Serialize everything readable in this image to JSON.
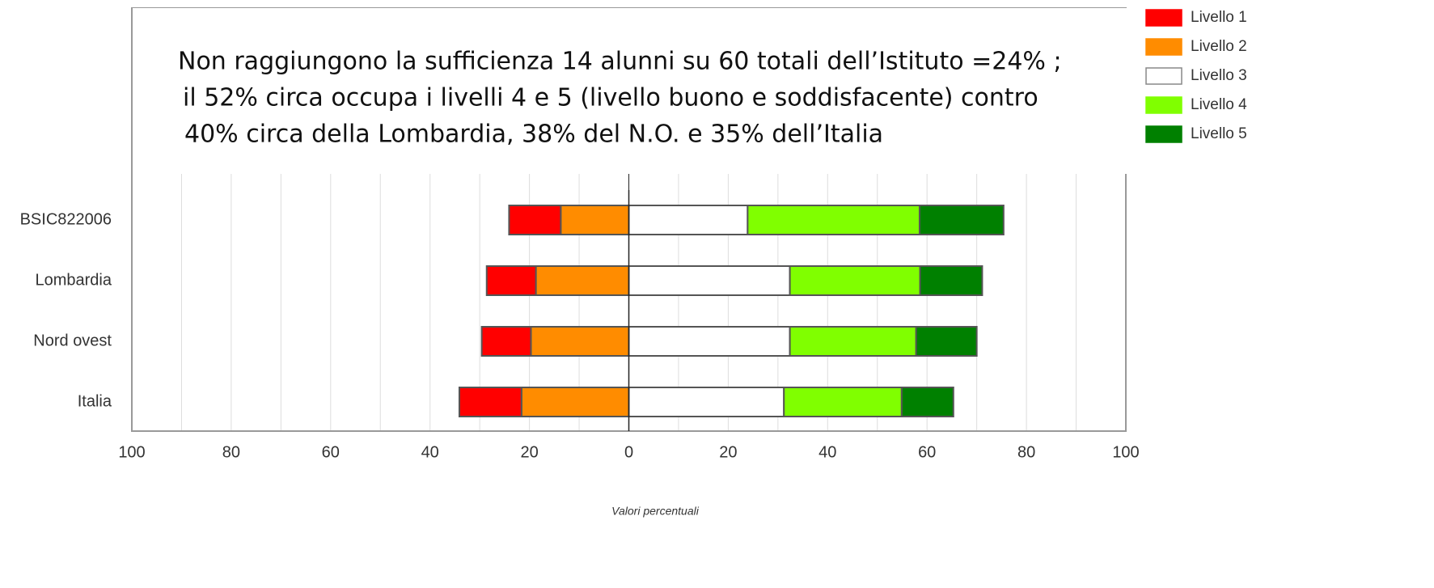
{
  "chart_data": {
    "type": "diverging_bar",
    "annotation": [
      "Non raggiungono la sufficienza 14 alunni su 60 totali dell’Istituto =24% ;",
      "il  52% circa occupa i livelli 4 e 5 (livello buono e soddisfacente)  contro",
      "40% circa della Lombardia, 38% del N.O. e 35% dell’Italia"
    ],
    "xlabel": "Valori percentuali",
    "categories": [
      "BSIC822006",
      "Lombardia",
      "Nord ovest",
      "Italia"
    ],
    "series": [
      {
        "name": "Livello 1",
        "color": "#ff0000",
        "values": [
          -10.4,
          -9.9,
          -9.9,
          -12.5
        ]
      },
      {
        "name": "Livello 2",
        "color": "#ff8c00",
        "values": [
          -13.7,
          -18.7,
          -19.7,
          -21.6
        ]
      },
      {
        "name": "Livello 3",
        "color": "#ffffff",
        "values": [
          23.9,
          32.4,
          32.4,
          31.2
        ]
      },
      {
        "name": "Livello 4",
        "color": "#80ff00",
        "values": [
          34.6,
          26.2,
          25.4,
          23.7
        ]
      },
      {
        "name": "Livello 5",
        "color": "#008000",
        "values": [
          16.9,
          12.5,
          12.2,
          10.4
        ]
      }
    ],
    "xlim": [
      -100,
      100
    ],
    "xticks": [
      {
        "value": -100,
        "label": "100"
      },
      {
        "value": -80,
        "label": "80"
      },
      {
        "value": -60,
        "label": "60"
      },
      {
        "value": -40,
        "label": "40"
      },
      {
        "value": -20,
        "label": "20"
      },
      0,
      20,
      40,
      60,
      80,
      100
    ],
    "minor_xticks": [
      -90,
      -70,
      -50,
      -30,
      -10,
      10,
      30,
      50,
      70,
      90
    ],
    "grid": true,
    "legend": "right"
  }
}
